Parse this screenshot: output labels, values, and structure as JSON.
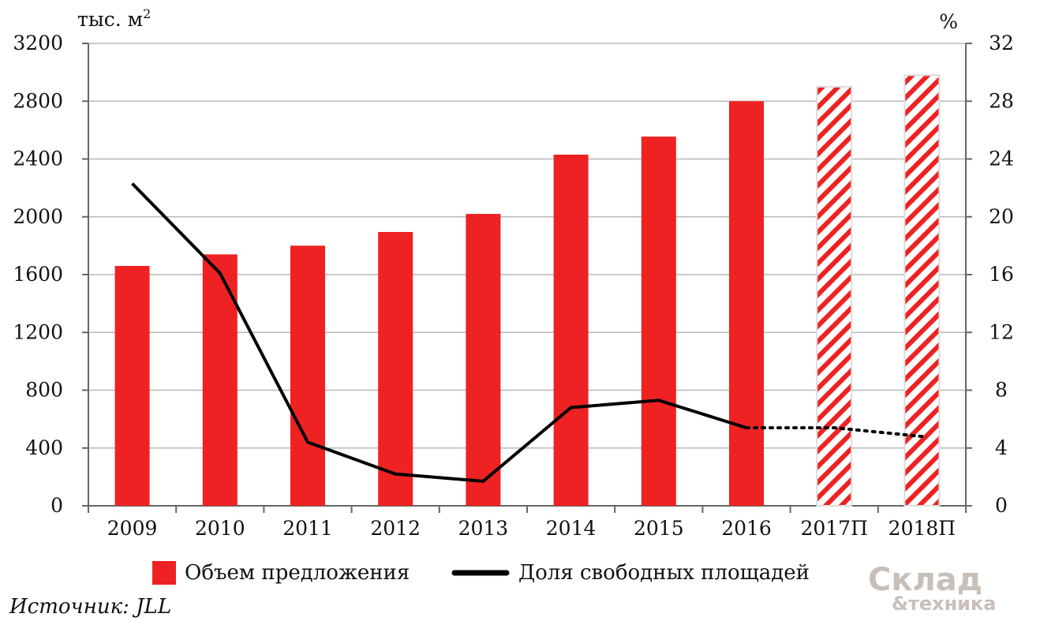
{
  "chart_data": {
    "type": "bar",
    "categories": [
      "2009",
      "2010",
      "2011",
      "2012",
      "2013",
      "2014",
      "2015",
      "2016",
      "2017П",
      "2018П"
    ],
    "forecast_categories": [
      "2017П",
      "2018П"
    ],
    "series": [
      {
        "name": "Объем предложения",
        "type": "bar",
        "axis": "left",
        "values": [
          1660,
          1740,
          1800,
          1895,
          2020,
          2430,
          2555,
          2800,
          2900,
          2980
        ],
        "color": "#ee2222",
        "forecast_pattern": "red-white-diagonal-stripes"
      },
      {
        "name": "Доля свободных площадей",
        "type": "line",
        "axis": "right",
        "values": [
          22.3,
          16.1,
          4.4,
          2.2,
          1.7,
          6.8,
          7.3,
          5.4,
          5.4,
          4.8
        ],
        "color": "#000000",
        "forecast_style": "dotted"
      }
    ],
    "y_left": {
      "unit": "тыс. м",
      "unit_superscript": "2",
      "ylim": [
        0,
        3200
      ],
      "ticks": [
        "0",
        "400",
        "800",
        "1200",
        "1600",
        "2000",
        "2400",
        "2800",
        "3200"
      ]
    },
    "y_right": {
      "unit": "%",
      "ylim": [
        0,
        32
      ],
      "ticks": [
        "0",
        "4",
        "8",
        "12",
        "16",
        "20",
        "24",
        "28",
        "32"
      ]
    },
    "grid": true,
    "legend_position": "bottom"
  },
  "source": "Источник: JLL",
  "logo": {
    "line1": "Склад",
    "line2": "&техника"
  }
}
